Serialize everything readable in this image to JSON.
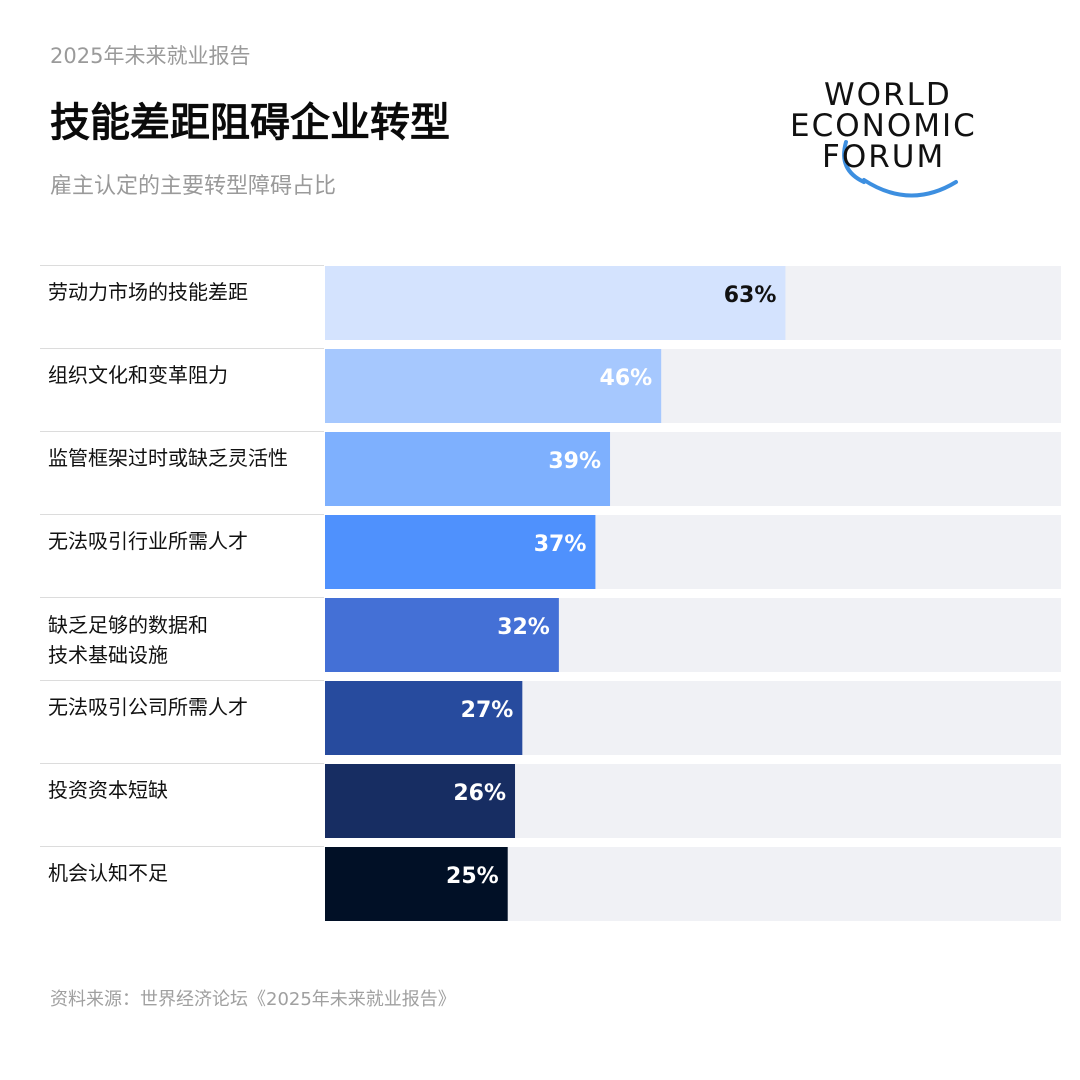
{
  "header": {
    "report_tag": "2025年未来就业报告",
    "title": "技能差距阻碍企业转型",
    "subtitle": "雇主认定的主要转型障碍占比"
  },
  "logo": {
    "lines": [
      "WORLD",
      "ECONOMIC",
      "FORUM"
    ],
    "arc_color": "#3d8fe0"
  },
  "chart_data": {
    "type": "bar",
    "orientation": "horizontal",
    "title": "技能差距阻碍企业转型",
    "subtitle": "雇主认定的主要转型障碍占比",
    "categories": [
      "劳动力市场的技能差距",
      "组织文化和变革阻力",
      "监管框架过时或缺乏灵活性",
      "无法吸引行业所需人才",
      "缺乏足够的数据和\n技术基础设施",
      "无法吸引公司所需人才",
      "投资资本短缺",
      "机会认知不足"
    ],
    "values": [
      63,
      46,
      39,
      37,
      32,
      27,
      26,
      25
    ],
    "value_labels": [
      "63%",
      "46%",
      "39%",
      "37%",
      "32%",
      "27%",
      "26%",
      "25%"
    ],
    "unit": "%",
    "xlim": [
      0,
      100
    ],
    "grid": false,
    "bar_colors": [
      "#d4e3fe",
      "#a6c8fe",
      "#7eb0fe",
      "#4f91fd",
      "#4470d6",
      "#274b9e",
      "#172d62",
      "#011026"
    ],
    "label_colors": [
      "#111111",
      "#ffffff",
      "#ffffff",
      "#ffffff",
      "#ffffff",
      "#ffffff",
      "#ffffff",
      "#ffffff"
    ],
    "track_color": "#f0f1f5"
  },
  "footer": {
    "source": "资料来源：世界经济论坛《2025年未来就业报告》"
  }
}
